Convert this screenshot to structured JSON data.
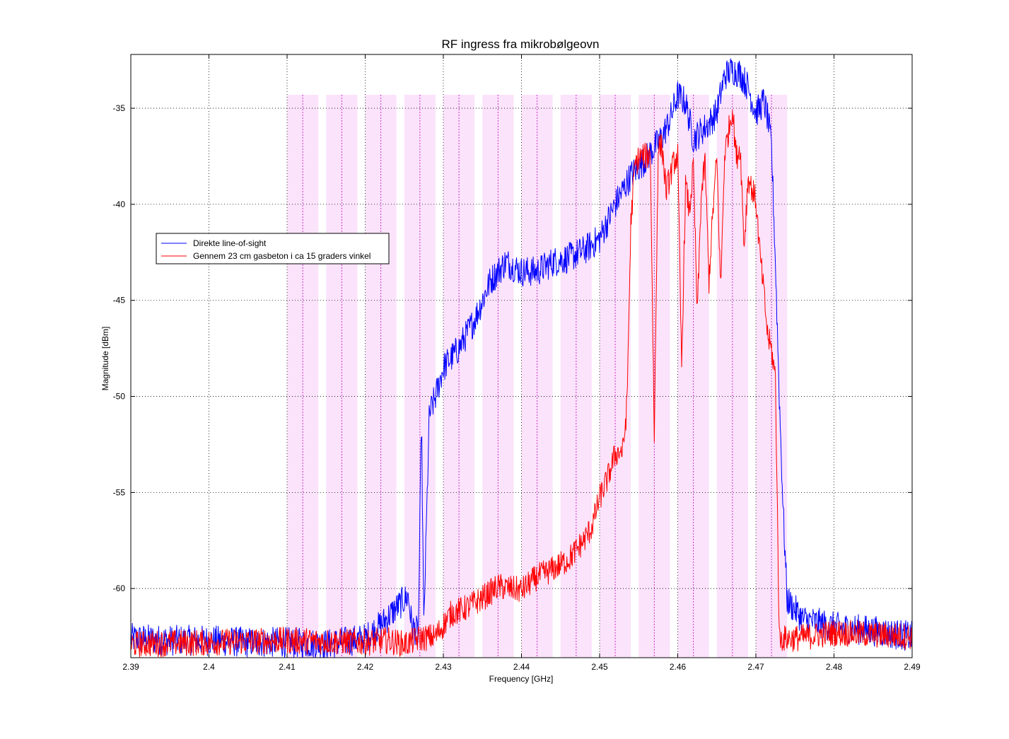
{
  "chart_data": {
    "type": "line",
    "title": "RF ingress fra mikrobølgeovn",
    "xlabel": "Frequency [GHz]",
    "ylabel": "Magnitude [dBm]",
    "xlim": [
      2.39,
      2.49
    ],
    "ylim": [
      -63.6,
      -32.2
    ],
    "xticks": [
      2.39,
      2.4,
      2.41,
      2.42,
      2.43,
      2.44,
      2.45,
      2.46,
      2.47,
      2.48,
      2.49
    ],
    "xtick_labels": [
      "2.39",
      "2.4",
      "2.41",
      "2.42",
      "2.43",
      "2.44",
      "2.45",
      "2.46",
      "2.47",
      "2.48",
      "2.49"
    ],
    "yticks": [
      -60,
      -55,
      -50,
      -45,
      -40,
      -35
    ],
    "ytick_labels": [
      "-60",
      "-55",
      "-50",
      "-45",
      "-40",
      "-35"
    ],
    "grid": true,
    "legend_position": "upper-left",
    "channel_bands": {
      "color": "#fbe3fb",
      "marker_color": "#cc33cc",
      "top": -34.3,
      "centers": [
        2.412,
        2.417,
        2.422,
        2.427,
        2.432,
        2.437,
        2.442,
        2.447,
        2.452,
        2.457,
        2.462,
        2.467,
        2.472
      ],
      "half_width": 0.002
    },
    "series": [
      {
        "name": "Direkte line-of-sight",
        "color": "#0000ff",
        "noise": 0.8,
        "x": [
          2.39,
          2.395,
          2.4,
          2.405,
          2.41,
          2.415,
          2.42,
          2.422,
          2.424,
          2.4255,
          2.426,
          2.4268,
          2.4272,
          2.4275,
          2.4282,
          2.429,
          2.43,
          2.432,
          2.434,
          2.436,
          2.438,
          2.44,
          2.442,
          2.444,
          2.446,
          2.448,
          2.45,
          2.452,
          2.454,
          2.456,
          2.458,
          2.459,
          2.46,
          2.461,
          2.462,
          2.463,
          2.464,
          2.465,
          2.466,
          2.467,
          2.468,
          2.469,
          2.4695,
          2.47,
          2.4705,
          2.471,
          2.4715,
          2.472,
          2.4725,
          2.473,
          2.4735,
          2.474,
          2.476,
          2.48,
          2.485,
          2.49
        ],
        "y": [
          -62.6,
          -62.7,
          -62.7,
          -62.8,
          -62.8,
          -62.9,
          -62.6,
          -61.9,
          -61.0,
          -60.4,
          -62.0,
          -62.3,
          -51.0,
          -62.0,
          -51.0,
          -50.0,
          -48.5,
          -47.5,
          -46.0,
          -44.0,
          -43.0,
          -43.5,
          -43.5,
          -43.0,
          -42.8,
          -42.4,
          -41.8,
          -40.0,
          -38.5,
          -37.6,
          -36.5,
          -35.6,
          -34.3,
          -34.7,
          -36.6,
          -36.2,
          -35.8,
          -35.2,
          -33.3,
          -33.0,
          -33.2,
          -33.9,
          -34.6,
          -35.2,
          -35.0,
          -34.6,
          -35.5,
          -37.0,
          -43.0,
          -50.0,
          -56.0,
          -60.6,
          -61.6,
          -62.0,
          -62.2,
          -62.5
        ]
      },
      {
        "name": "Gennem 23 cm gasbeton i ca 15 graders vinkel",
        "color": "#ff0000",
        "noise": 0.7,
        "x": [
          2.39,
          2.4,
          2.41,
          2.42,
          2.423,
          2.425,
          2.427,
          2.429,
          2.431,
          2.433,
          2.435,
          2.437,
          2.44,
          2.442,
          2.444,
          2.446,
          2.448,
          2.449,
          2.45,
          2.451,
          2.452,
          2.453,
          2.4535,
          2.454,
          2.4545,
          2.455,
          2.4555,
          2.456,
          2.4565,
          2.457,
          2.4575,
          2.458,
          2.4585,
          2.459,
          2.4595,
          2.46,
          2.4605,
          2.461,
          2.4615,
          2.462,
          2.4625,
          2.463,
          2.4635,
          2.464,
          2.4645,
          2.465,
          2.4655,
          2.466,
          2.4665,
          2.467,
          2.4675,
          2.468,
          2.4685,
          2.469,
          2.4695,
          2.47,
          2.4705,
          2.471,
          2.4715,
          2.472,
          2.4725,
          2.473,
          2.475,
          2.48,
          2.485,
          2.49
        ],
        "y": [
          -62.9,
          -62.8,
          -62.7,
          -62.8,
          -62.7,
          -62.9,
          -62.6,
          -62.5,
          -61.3,
          -61.0,
          -60.5,
          -59.9,
          -60.1,
          -59.4,
          -59.0,
          -58.5,
          -57.5,
          -56.8,
          -55.3,
          -54.3,
          -53.0,
          -52.8,
          -50.5,
          -41.0,
          -38.0,
          -37.6,
          -37.5,
          -37.5,
          -37.4,
          -52.2,
          -37.0,
          -37.0,
          -39.3,
          -38.6,
          -37.8,
          -37.5,
          -48.5,
          -39.0,
          -40.4,
          -38.0,
          -45.8,
          -39.6,
          -37.8,
          -44.0,
          -40.4,
          -37.6,
          -44.4,
          -37.4,
          -36.2,
          -35.0,
          -37.6,
          -37.0,
          -42.2,
          -38.6,
          -39.2,
          -39.8,
          -42.5,
          -44.5,
          -46.8,
          -47.6,
          -49.0,
          -62.6,
          -62.6,
          -62.3,
          -62.4,
          -62.5
        ]
      }
    ]
  }
}
